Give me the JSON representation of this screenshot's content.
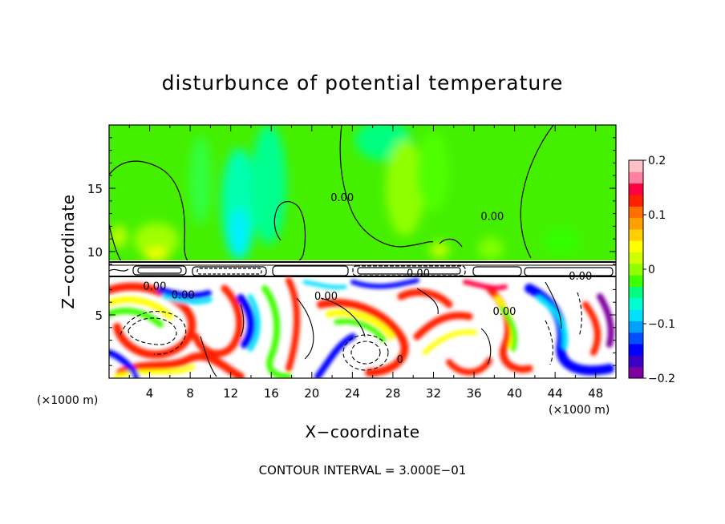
{
  "chart_data": {
    "type": "heatmap",
    "title": "disturbunce of potential temperature",
    "xlabel": "X−coordinate",
    "ylabel": "Z−coordinate",
    "x_unit_left": "(×1000 m)",
    "x_unit_right": "(×1000 m)",
    "footer": "CONTOUR INTERVAL = 3.000E−01",
    "xlim": [
      0,
      50
    ],
    "ylim": [
      0,
      20
    ],
    "x_ticks": [
      4,
      8,
      12,
      16,
      20,
      24,
      28,
      32,
      36,
      40,
      44,
      48
    ],
    "x_tick_labels": [
      "4",
      "8",
      "12",
      "16",
      "20",
      "24",
      "28",
      "32",
      "36",
      "40",
      "44",
      "48"
    ],
    "y_ticks": [
      5,
      10,
      15
    ],
    "y_tick_labels": [
      "5",
      "10",
      "15"
    ],
    "colorbar": {
      "min": -0.2,
      "max": 0.2,
      "ticks": [
        0.2,
        0.1,
        0,
        -0.1,
        -0.2
      ],
      "tick_labels": [
        "0.2",
        "0.1",
        "0",
        "−0.1",
        "−0.2"
      ],
      "colors": [
        "#7f00a0",
        "#3a00c8",
        "#0000ff",
        "#0050ff",
        "#00a0ff",
        "#00e0ff",
        "#00ffd0",
        "#00ff80",
        "#40ff00",
        "#90ff00",
        "#d0ff00",
        "#ffff00",
        "#ffd000",
        "#ffa000",
        "#ff7000",
        "#ff2000",
        "#ff0040",
        "#ff80a0",
        "#ffc0c8"
      ]
    },
    "contour_labels": [
      {
        "text": "0.00",
        "x": 23,
        "y": 14.0
      },
      {
        "text": "0.00",
        "x": 37.8,
        "y": 12.5
      },
      {
        "text": "0.00",
        "x": 4.5,
        "y": 7.0
      },
      {
        "text": "0.00",
        "x": 7.3,
        "y": 6.3
      },
      {
        "text": "0.00",
        "x": 21.4,
        "y": 6.2
      },
      {
        "text": "0.00",
        "x": 30.5,
        "y": 8.0
      },
      {
        "text": "0.00",
        "x": 39.0,
        "y": 5.0
      },
      {
        "text": "0.00",
        "x": 46.5,
        "y": 7.8
      },
      {
        "text": "0",
        "x": 28.7,
        "y": 1.2
      }
    ],
    "upper_layer_background": "#44f000",
    "lower_layer_note_colors": [
      "#ffffff",
      "#ff2000",
      "#ffff00",
      "#40ff00",
      "#0000ff",
      "#00e0ff",
      "#7f00a0"
    ]
  }
}
